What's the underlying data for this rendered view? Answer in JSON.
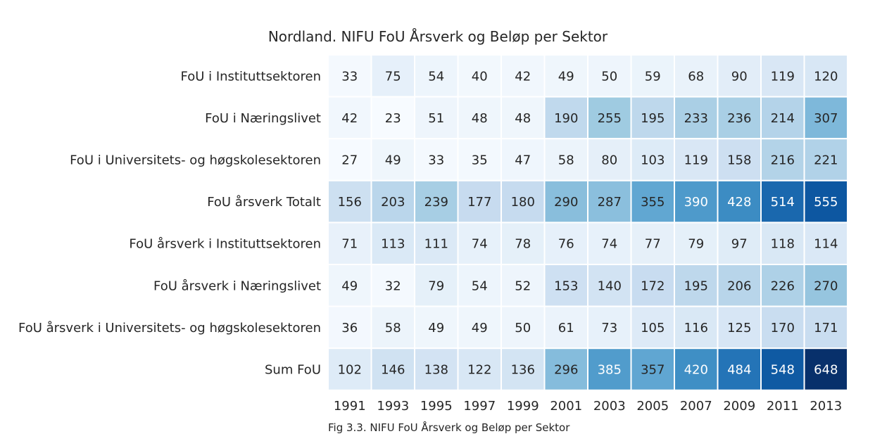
{
  "chart_data": {
    "type": "heatmap",
    "title": "Nordland. NIFU FoU Årsverk og Beløp per Sektor",
    "caption": "Fig 3.3. NIFU FoU Årsverk og Beløp per Sektor",
    "x": [
      "1991",
      "1993",
      "1995",
      "1997",
      "1999",
      "2001",
      "2003",
      "2005",
      "2007",
      "2009",
      "2011",
      "2013"
    ],
    "y": [
      "FoU i Instituttsektoren",
      "FoU i Næringslivet",
      "FoU i Universitets- og høgskolesektoren",
      "FoU årsverk Totalt",
      "FoU årsverk i Instituttsektoren",
      "FoU årsverk i Næringslivet",
      "FoU årsverk i Universitets- og høgskolesektoren",
      "Sum FoU"
    ],
    "values": [
      [
        33,
        75,
        54,
        40,
        42,
        49,
        50,
        59,
        68,
        90,
        119,
        120
      ],
      [
        42,
        23,
        51,
        48,
        48,
        190,
        255,
        195,
        233,
        236,
        214,
        307
      ],
      [
        27,
        49,
        33,
        35,
        47,
        58,
        80,
        103,
        119,
        158,
        216,
        221
      ],
      [
        156,
        203,
        239,
        177,
        180,
        290,
        287,
        355,
        390,
        428,
        514,
        555
      ],
      [
        71,
        113,
        111,
        74,
        78,
        76,
        74,
        77,
        79,
        97,
        118,
        114
      ],
      [
        49,
        32,
        79,
        54,
        52,
        153,
        140,
        172,
        195,
        206,
        226,
        270
      ],
      [
        36,
        58,
        49,
        49,
        50,
        61,
        73,
        105,
        116,
        125,
        170,
        171
      ],
      [
        102,
        146,
        138,
        122,
        136,
        296,
        385,
        357,
        420,
        484,
        548,
        648
      ]
    ],
    "colormap": "Blues",
    "value_range": [
      23,
      648
    ],
    "grid": false,
    "legend": "none"
  }
}
